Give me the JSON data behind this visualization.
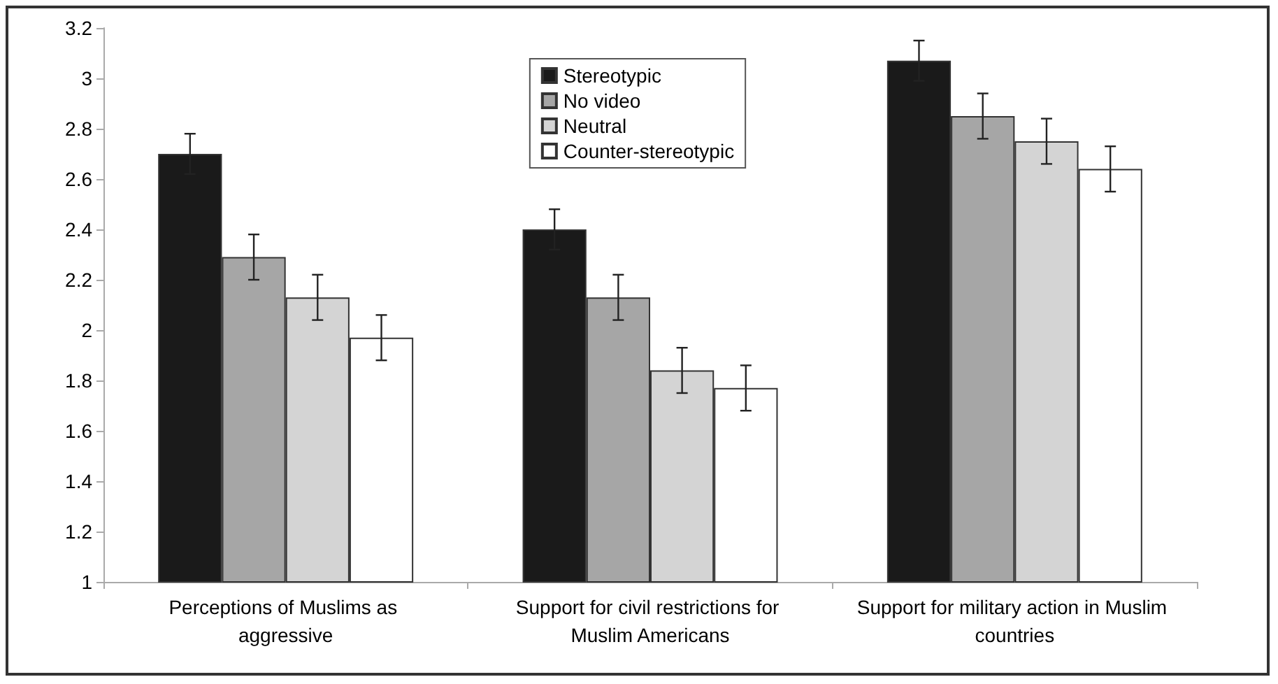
{
  "chart_data": {
    "type": "bar",
    "categories": [
      "Perceptions of Muslims as aggressive",
      "Support for civil restrictions for Muslim Americans",
      "Support for military action in Muslim countries"
    ],
    "series": [
      {
        "name": "Stereotypic",
        "color": "#1a1a1a",
        "values": [
          2.7,
          2.4,
          3.07
        ],
        "errors": [
          0.08,
          0.08,
          0.08
        ]
      },
      {
        "name": "No video",
        "color": "#a6a6a6",
        "values": [
          2.29,
          2.13,
          2.85
        ],
        "errors": [
          0.09,
          0.09,
          0.09
        ]
      },
      {
        "name": "Neutral",
        "color": "#d4d4d4",
        "values": [
          2.13,
          1.84,
          2.75
        ],
        "errors": [
          0.09,
          0.09,
          0.09
        ]
      },
      {
        "name": "Counter-stereotypic",
        "color": "#ffffff",
        "values": [
          1.97,
          1.77,
          2.64
        ],
        "errors": [
          0.09,
          0.09,
          0.09
        ]
      }
    ],
    "ylim": [
      1,
      3.2
    ],
    "yticks": [
      1,
      1.2,
      1.4,
      1.6,
      1.8,
      2,
      2.2,
      2.4,
      2.6,
      2.8,
      3,
      3.2
    ],
    "grid": false,
    "legend": "top"
  }
}
